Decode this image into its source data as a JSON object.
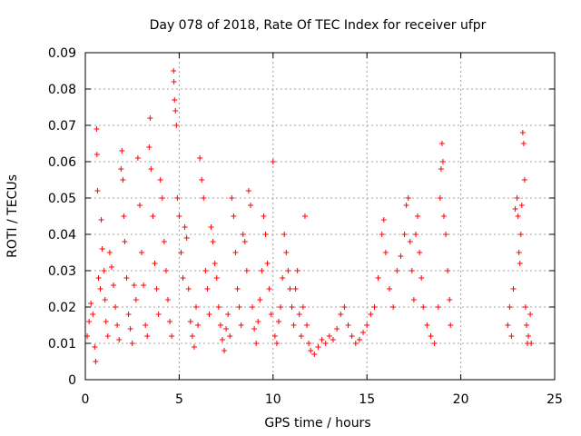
{
  "chart_data": {
    "type": "scatter",
    "title": "Day 078 of 2018, Rate Of TEC Index for receiver ufpr",
    "xlabel": "GPS time / hours",
    "ylabel": "ROTI / TECUs",
    "xlim": [
      0,
      25
    ],
    "ylim": [
      0,
      0.09
    ],
    "xticks": [
      0,
      5,
      10,
      15,
      20,
      25
    ],
    "yticks": [
      0,
      0.01,
      0.02,
      0.03,
      0.04,
      0.05,
      0.06,
      0.07,
      0.08,
      0.09
    ],
    "xtick_labels": [
      "0",
      "5",
      "10",
      "15",
      "20",
      "25"
    ],
    "ytick_labels": [
      "0",
      "0.01",
      "0.02",
      "0.03",
      "0.04",
      "0.05",
      "0.06",
      "0.07",
      "0.08",
      "0.09"
    ],
    "grid": true,
    "marker": "+",
    "series": [
      {
        "name": "ROTI",
        "color": "#ff0000",
        "points": [
          [
            0.1,
            0.012
          ],
          [
            0.2,
            0.016
          ],
          [
            0.3,
            0.021
          ],
          [
            0.4,
            0.018
          ],
          [
            0.5,
            0.009
          ],
          [
            0.55,
            0.005
          ],
          [
            0.6,
            0.069
          ],
          [
            0.62,
            0.062
          ],
          [
            0.65,
            0.052
          ],
          [
            0.7,
            0.028
          ],
          [
            0.8,
            0.025
          ],
          [
            0.85,
            0.044
          ],
          [
            0.9,
            0.036
          ],
          [
            1.0,
            0.03
          ],
          [
            1.05,
            0.022
          ],
          [
            1.1,
            0.016
          ],
          [
            1.2,
            0.012
          ],
          [
            1.3,
            0.035
          ],
          [
            1.4,
            0.031
          ],
          [
            1.5,
            0.026
          ],
          [
            1.6,
            0.02
          ],
          [
            1.7,
            0.015
          ],
          [
            1.8,
            0.011
          ],
          [
            1.9,
            0.058
          ],
          [
            1.95,
            0.063
          ],
          [
            2.0,
            0.055
          ],
          [
            2.05,
            0.045
          ],
          [
            2.1,
            0.038
          ],
          [
            2.2,
            0.028
          ],
          [
            2.3,
            0.018
          ],
          [
            2.4,
            0.014
          ],
          [
            2.5,
            0.01
          ],
          [
            2.6,
            0.026
          ],
          [
            2.7,
            0.022
          ],
          [
            2.8,
            0.061
          ],
          [
            2.9,
            0.048
          ],
          [
            3.0,
            0.035
          ],
          [
            3.1,
            0.026
          ],
          [
            3.2,
            0.015
          ],
          [
            3.3,
            0.012
          ],
          [
            3.4,
            0.064
          ],
          [
            3.45,
            0.072
          ],
          [
            3.5,
            0.058
          ],
          [
            3.6,
            0.045
          ],
          [
            3.7,
            0.032
          ],
          [
            3.8,
            0.025
          ],
          [
            3.9,
            0.018
          ],
          [
            4.0,
            0.055
          ],
          [
            4.1,
            0.05
          ],
          [
            4.2,
            0.038
          ],
          [
            4.3,
            0.03
          ],
          [
            4.4,
            0.022
          ],
          [
            4.5,
            0.016
          ],
          [
            4.6,
            0.012
          ],
          [
            4.7,
            0.085
          ],
          [
            4.72,
            0.082
          ],
          [
            4.75,
            0.077
          ],
          [
            4.8,
            0.074
          ],
          [
            4.85,
            0.07
          ],
          [
            4.9,
            0.05
          ],
          [
            5.0,
            0.045
          ],
          [
            5.1,
            0.035
          ],
          [
            5.2,
            0.028
          ],
          [
            5.3,
            0.042
          ],
          [
            5.4,
            0.039
          ],
          [
            5.5,
            0.025
          ],
          [
            5.6,
            0.016
          ],
          [
            5.7,
            0.012
          ],
          [
            5.8,
            0.009
          ],
          [
            5.9,
            0.02
          ],
          [
            6.0,
            0.015
          ],
          [
            6.1,
            0.061
          ],
          [
            6.2,
            0.055
          ],
          [
            6.3,
            0.05
          ],
          [
            6.4,
            0.03
          ],
          [
            6.5,
            0.025
          ],
          [
            6.6,
            0.018
          ],
          [
            6.7,
            0.042
          ],
          [
            6.8,
            0.038
          ],
          [
            6.9,
            0.032
          ],
          [
            7.0,
            0.028
          ],
          [
            7.1,
            0.02
          ],
          [
            7.2,
            0.015
          ],
          [
            7.3,
            0.011
          ],
          [
            7.4,
            0.008
          ],
          [
            7.5,
            0.014
          ],
          [
            7.6,
            0.018
          ],
          [
            7.7,
            0.012
          ],
          [
            7.8,
            0.05
          ],
          [
            7.9,
            0.045
          ],
          [
            8.0,
            0.035
          ],
          [
            8.1,
            0.025
          ],
          [
            8.2,
            0.02
          ],
          [
            8.3,
            0.015
          ],
          [
            8.4,
            0.04
          ],
          [
            8.5,
            0.038
          ],
          [
            8.6,
            0.03
          ],
          [
            8.7,
            0.052
          ],
          [
            8.8,
            0.048
          ],
          [
            8.9,
            0.02
          ],
          [
            9.0,
            0.014
          ],
          [
            9.1,
            0.01
          ],
          [
            9.2,
            0.016
          ],
          [
            9.3,
            0.022
          ],
          [
            9.4,
            0.03
          ],
          [
            9.5,
            0.045
          ],
          [
            9.6,
            0.04
          ],
          [
            9.7,
            0.032
          ],
          [
            9.8,
            0.025
          ],
          [
            9.9,
            0.018
          ],
          [
            10.0,
            0.06
          ],
          [
            10.1,
            0.012
          ],
          [
            10.2,
            0.01
          ],
          [
            10.3,
            0.016
          ],
          [
            10.4,
            0.02
          ],
          [
            10.5,
            0.028
          ],
          [
            10.6,
            0.04
          ],
          [
            10.7,
            0.035
          ],
          [
            10.8,
            0.03
          ],
          [
            10.9,
            0.025
          ],
          [
            11.0,
            0.02
          ],
          [
            11.1,
            0.015
          ],
          [
            11.2,
            0.025
          ],
          [
            11.3,
            0.03
          ],
          [
            11.4,
            0.018
          ],
          [
            11.5,
            0.012
          ],
          [
            11.6,
            0.02
          ],
          [
            11.7,
            0.045
          ],
          [
            11.8,
            0.015
          ],
          [
            11.9,
            0.01
          ],
          [
            12.0,
            0.008
          ],
          [
            12.2,
            0.007
          ],
          [
            12.4,
            0.009
          ],
          [
            12.6,
            0.011
          ],
          [
            12.8,
            0.01
          ],
          [
            13.0,
            0.012
          ],
          [
            13.2,
            0.011
          ],
          [
            13.4,
            0.014
          ],
          [
            13.6,
            0.018
          ],
          [
            13.8,
            0.02
          ],
          [
            14.0,
            0.015
          ],
          [
            14.2,
            0.012
          ],
          [
            14.4,
            0.01
          ],
          [
            14.6,
            0.011
          ],
          [
            14.8,
            0.013
          ],
          [
            15.0,
            0.015
          ],
          [
            15.2,
            0.018
          ],
          [
            15.4,
            0.02
          ],
          [
            15.6,
            0.028
          ],
          [
            15.8,
            0.04
          ],
          [
            15.9,
            0.044
          ],
          [
            16.0,
            0.035
          ],
          [
            16.2,
            0.025
          ],
          [
            16.4,
            0.02
          ],
          [
            16.6,
            0.03
          ],
          [
            16.8,
            0.034
          ],
          [
            17.0,
            0.04
          ],
          [
            17.1,
            0.048
          ],
          [
            17.2,
            0.05
          ],
          [
            17.3,
            0.038
          ],
          [
            17.4,
            0.03
          ],
          [
            17.5,
            0.022
          ],
          [
            17.6,
            0.04
          ],
          [
            17.7,
            0.045
          ],
          [
            17.8,
            0.035
          ],
          [
            17.9,
            0.028
          ],
          [
            18.0,
            0.02
          ],
          [
            18.2,
            0.015
          ],
          [
            18.4,
            0.012
          ],
          [
            18.6,
            0.01
          ],
          [
            18.8,
            0.02
          ],
          [
            18.9,
            0.05
          ],
          [
            18.95,
            0.058
          ],
          [
            19.0,
            0.065
          ],
          [
            19.05,
            0.06
          ],
          [
            19.1,
            0.045
          ],
          [
            19.2,
            0.04
          ],
          [
            19.3,
            0.03
          ],
          [
            19.4,
            0.022
          ],
          [
            19.45,
            0.015
          ],
          [
            22.5,
            0.015
          ],
          [
            22.6,
            0.02
          ],
          [
            22.7,
            0.012
          ],
          [
            22.8,
            0.025
          ],
          [
            22.9,
            0.047
          ],
          [
            23.0,
            0.05
          ],
          [
            23.05,
            0.045
          ],
          [
            23.1,
            0.035
          ],
          [
            23.15,
            0.032
          ],
          [
            23.2,
            0.04
          ],
          [
            23.25,
            0.048
          ],
          [
            23.3,
            0.068
          ],
          [
            23.35,
            0.065
          ],
          [
            23.4,
            0.055
          ],
          [
            23.45,
            0.02
          ],
          [
            23.5,
            0.015
          ],
          [
            23.55,
            0.01
          ],
          [
            23.6,
            0.012
          ],
          [
            23.7,
            0.018
          ],
          [
            23.75,
            0.01
          ]
        ]
      }
    ]
  }
}
